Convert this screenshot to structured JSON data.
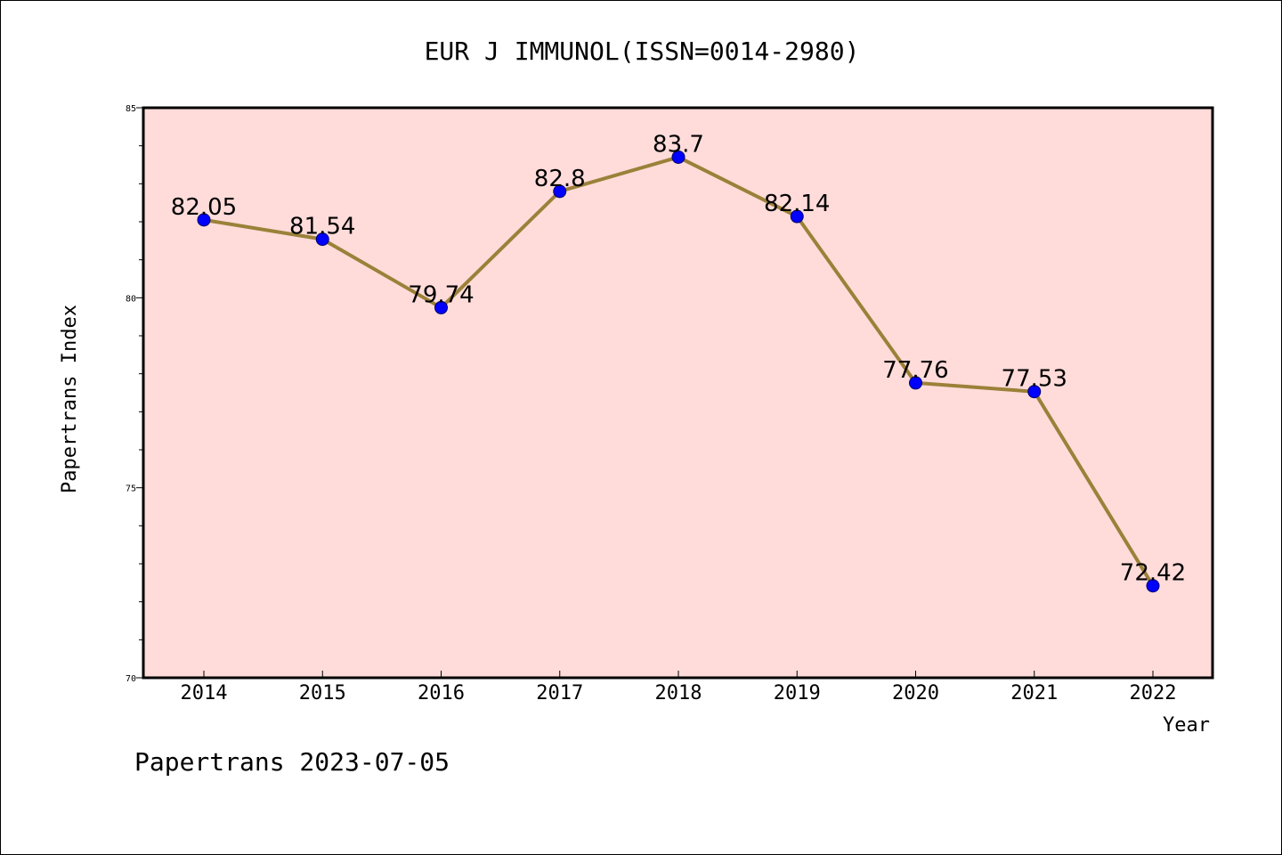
{
  "colors": {
    "plot_bg": "#FFDCDA",
    "line": "#9B8139",
    "marker": "#0000FF",
    "axis": "#000000"
  },
  "chart_data": {
    "type": "line",
    "title": "EUR J IMMUNOL(ISSN=0014-2980)",
    "xlabel": "Year",
    "ylabel": "Papertrans Index",
    "footer": "Papertrans 2023-07-05",
    "x": [
      "2014",
      "2015",
      "2016",
      "2017",
      "2018",
      "2019",
      "2020",
      "2021",
      "2022"
    ],
    "series": [
      {
        "values": [
          82.05,
          81.54,
          79.74,
          82.8,
          83.7,
          82.14,
          77.76,
          77.53,
          72.42
        ],
        "data_labels": [
          "82.05",
          "81.54",
          "79.74",
          "82.8",
          "83.7",
          "82.14",
          "77.76",
          "77.53",
          "72.42"
        ]
      }
    ],
    "ylim": [
      70,
      85
    ],
    "yticks": [
      "70",
      "75",
      "80",
      "85"
    ],
    "grid": false,
    "legend": "none"
  }
}
